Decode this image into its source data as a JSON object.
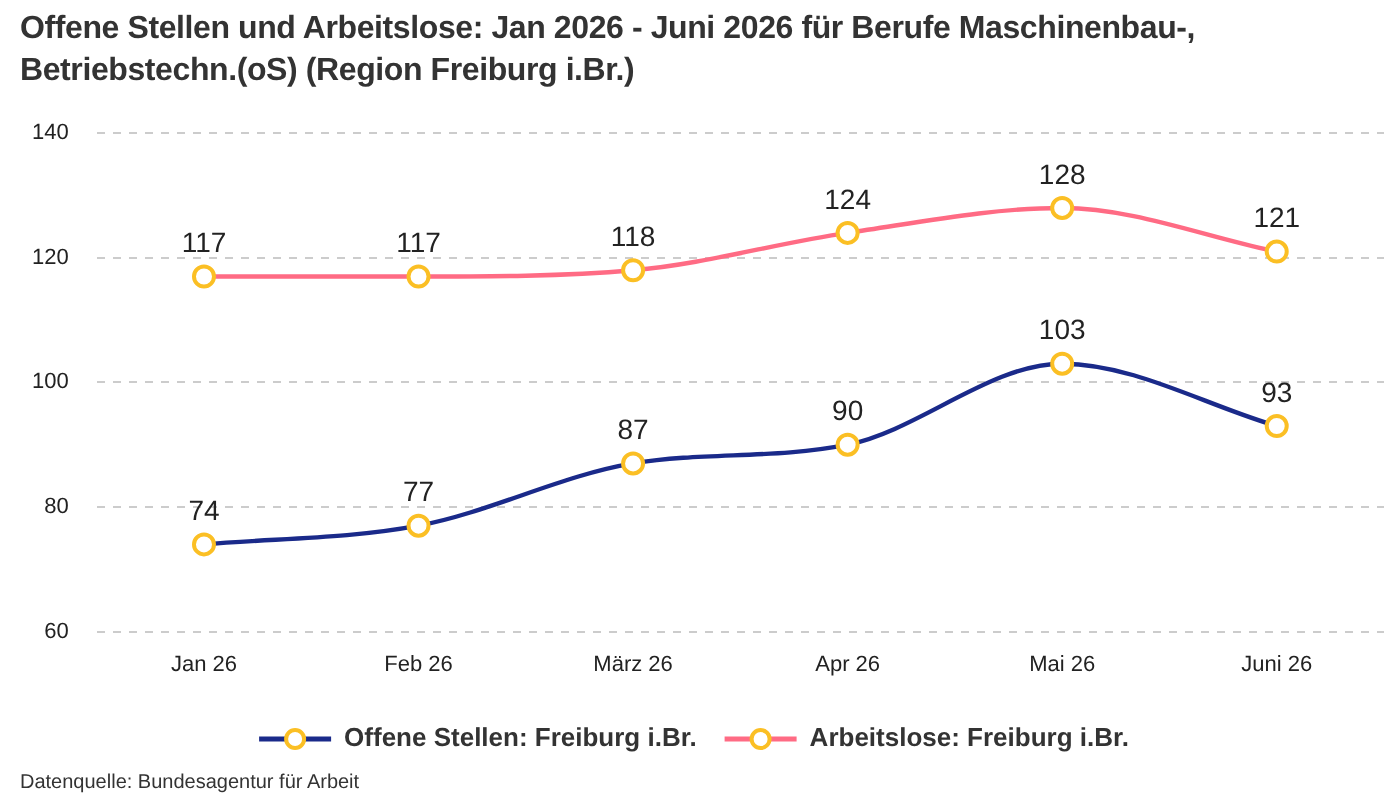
{
  "chart_data": {
    "type": "line",
    "title": "Offene Stellen und Arbeitslose: Jan 2026 - Juni 2026 für Berufe Maschinenbau-, Betriebstechn.(oS) (Region Freiburg i.Br.)",
    "categories": [
      "Jan 26",
      "Feb 26",
      "März 26",
      "Apr 26",
      "Mai 26",
      "Juni 26"
    ],
    "series": [
      {
        "name": "Offene Stellen: Freiburg i.Br.",
        "color": "#1a2a8a",
        "values": [
          74,
          77,
          87,
          90,
          103,
          93
        ]
      },
      {
        "name": "Arbeitslose: Freiburg i.Br.",
        "color": "#ff6b84",
        "values": [
          117,
          117,
          118,
          124,
          128,
          121
        ]
      }
    ],
    "ylim": [
      60,
      140
    ],
    "yticks": [
      60,
      80,
      100,
      120,
      140
    ],
    "grid": "y",
    "legend": "bottom",
    "marker": "circle",
    "line_style": "solid",
    "data_labels": true,
    "annotations": [
      "Datenquelle: Bundesagentur für Arbeit"
    ]
  }
}
